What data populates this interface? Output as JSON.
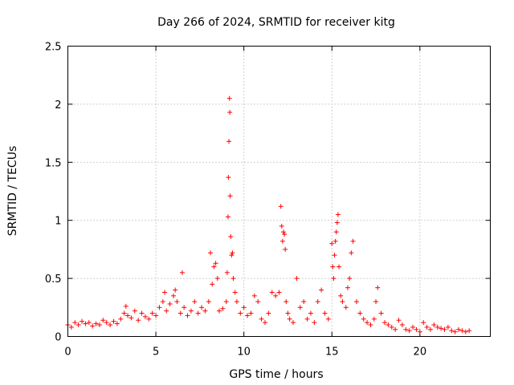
{
  "chart_data": {
    "type": "scatter",
    "title": "Day 266 of 2024, SRMTID for receiver kitg",
    "xlabel": "GPS time / hours",
    "ylabel": "SRMTID / TECUs",
    "xlim": [
      0,
      24
    ],
    "ylim": [
      0,
      2.5
    ],
    "xticks": [
      "0",
      "5",
      "10",
      "15",
      "20"
    ],
    "xtick_values": [
      0,
      5,
      10,
      15,
      20
    ],
    "yticks": [
      "0",
      "0.5",
      "1",
      "1.5",
      "2",
      "2.5"
    ],
    "ytick_values": [
      0,
      0.5,
      1,
      1.5,
      2,
      2.5
    ],
    "grid": true,
    "marker": "+",
    "color": "#ff0000",
    "series": [
      {
        "name": "SRMTID",
        "x": [
          0.0,
          0.2,
          0.4,
          0.6,
          0.8,
          1.0,
          1.2,
          1.4,
          1.6,
          1.8,
          2.0,
          2.2,
          2.4,
          2.6,
          2.8,
          3.0,
          3.2,
          3.3,
          3.4,
          3.6,
          3.8,
          4.0,
          4.2,
          4.4,
          4.6,
          4.8,
          5.0,
          5.2,
          5.4,
          5.5,
          5.6,
          5.8,
          6.0,
          6.1,
          6.2,
          6.4,
          6.5,
          6.6,
          6.8,
          7.0,
          7.2,
          7.4,
          7.6,
          7.8,
          8.0,
          8.1,
          8.2,
          8.3,
          8.4,
          8.5,
          8.6,
          8.8,
          9.0,
          9.05,
          9.1,
          9.12,
          9.15,
          9.18,
          9.2,
          9.22,
          9.25,
          9.3,
          9.35,
          9.4,
          9.5,
          9.6,
          9.8,
          10.0,
          10.2,
          10.4,
          10.6,
          10.8,
          11.0,
          11.2,
          11.4,
          11.6,
          11.8,
          12.0,
          12.1,
          12.15,
          12.2,
          12.25,
          12.3,
          12.35,
          12.4,
          12.5,
          12.6,
          12.8,
          13.0,
          13.2,
          13.4,
          13.6,
          13.8,
          14.0,
          14.2,
          14.4,
          14.6,
          14.8,
          15.0,
          15.05,
          15.1,
          15.15,
          15.2,
          15.25,
          15.3,
          15.35,
          15.4,
          15.5,
          15.6,
          15.8,
          15.9,
          16.0,
          16.1,
          16.2,
          16.4,
          16.6,
          16.8,
          17.0,
          17.2,
          17.4,
          17.5,
          17.6,
          17.8,
          18.0,
          18.2,
          18.4,
          18.6,
          18.8,
          19.0,
          19.2,
          19.4,
          19.6,
          19.8,
          20.0,
          20.2,
          20.4,
          20.6,
          20.8,
          21.0,
          21.2,
          21.4,
          21.6,
          21.8,
          22.0,
          22.2,
          22.4,
          22.6,
          22.8
        ],
        "y": [
          0.1,
          0.08,
          0.12,
          0.1,
          0.13,
          0.11,
          0.12,
          0.09,
          0.11,
          0.1,
          0.14,
          0.12,
          0.1,
          0.13,
          0.11,
          0.15,
          0.2,
          0.26,
          0.18,
          0.16,
          0.22,
          0.14,
          0.2,
          0.17,
          0.15,
          0.2,
          0.18,
          0.25,
          0.3,
          0.38,
          0.22,
          0.28,
          0.35,
          0.4,
          0.3,
          0.2,
          0.55,
          0.25,
          0.18,
          0.22,
          0.3,
          0.2,
          0.25,
          0.22,
          0.3,
          0.72,
          0.45,
          0.6,
          0.63,
          0.5,
          0.22,
          0.24,
          0.3,
          0.55,
          1.03,
          1.37,
          1.68,
          2.05,
          1.93,
          1.21,
          0.86,
          0.7,
          0.72,
          0.5,
          0.38,
          0.3,
          0.2,
          0.25,
          0.18,
          0.2,
          0.35,
          0.3,
          0.15,
          0.12,
          0.2,
          0.38,
          0.35,
          0.38,
          1.12,
          0.95,
          0.82,
          0.9,
          0.88,
          0.75,
          0.3,
          0.2,
          0.15,
          0.12,
          0.5,
          0.25,
          0.3,
          0.15,
          0.2,
          0.12,
          0.3,
          0.4,
          0.2,
          0.15,
          0.8,
          0.6,
          0.5,
          0.7,
          0.82,
          0.9,
          0.98,
          1.05,
          0.6,
          0.35,
          0.3,
          0.25,
          0.42,
          0.5,
          0.72,
          0.82,
          0.3,
          0.2,
          0.15,
          0.12,
          0.1,
          0.15,
          0.3,
          0.42,
          0.2,
          0.12,
          0.1,
          0.08,
          0.06,
          0.14,
          0.1,
          0.06,
          0.05,
          0.08,
          0.06,
          0.04,
          0.12,
          0.08,
          0.06,
          0.1,
          0.08,
          0.07,
          0.06,
          0.08,
          0.05,
          0.04,
          0.06,
          0.05,
          0.04,
          0.05
        ]
      }
    ]
  }
}
